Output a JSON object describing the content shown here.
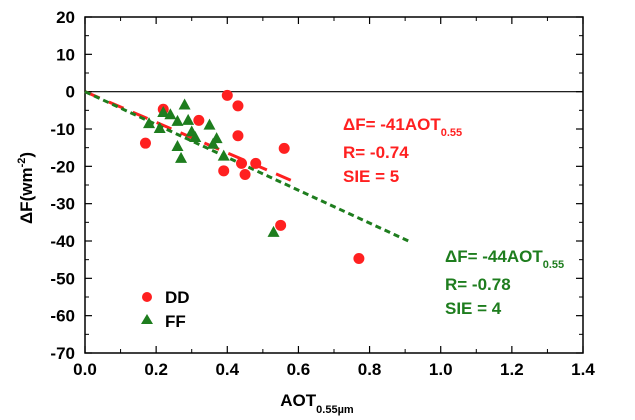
{
  "chart_data": {
    "type": "scatter",
    "xlabel": {
      "main": "AOT",
      "sub": "0.55µm"
    },
    "ylabel": {
      "main": "ΔF(wm",
      "sup": "-2",
      "tail": ")"
    },
    "xlim": [
      0,
      1.4
    ],
    "ylim": [
      -70,
      20
    ],
    "xticks": [
      0.0,
      0.2,
      0.4,
      0.6,
      0.8,
      1.0,
      1.2,
      1.4
    ],
    "xtick_labels": [
      "0.0",
      "0.2",
      "0.4",
      "0.6",
      "0.8",
      "1.0",
      "1.2",
      "1.4"
    ],
    "yticks": [
      20,
      10,
      0,
      -10,
      -20,
      -30,
      -40,
      -50,
      -60,
      -70
    ],
    "ytick_labels": [
      "20",
      "10",
      "0",
      "-10",
      "-20",
      "-30",
      "-40",
      "-50",
      "-60",
      "-70"
    ],
    "grid": false,
    "zero_line": true,
    "legend": {
      "placement": "bottom-left",
      "items": [
        {
          "label": "DD",
          "marker": "circle",
          "color": "#ff2020"
        },
        {
          "label": "FF",
          "marker": "triangle",
          "color": "#1e7d1e"
        }
      ]
    },
    "series": [
      {
        "name": "DD",
        "marker": "circle",
        "color": "#ff2020",
        "points": [
          {
            "x": 0.17,
            "y": -13.8
          },
          {
            "x": 0.22,
            "y": -4.7
          },
          {
            "x": 0.32,
            "y": -7.7
          },
          {
            "x": 0.39,
            "y": -21.2
          },
          {
            "x": 0.4,
            "y": -1.0
          },
          {
            "x": 0.43,
            "y": -3.8
          },
          {
            "x": 0.43,
            "y": -11.8
          },
          {
            "x": 0.44,
            "y": -19.2
          },
          {
            "x": 0.45,
            "y": -22.2
          },
          {
            "x": 0.48,
            "y": -19.2
          },
          {
            "x": 0.55,
            "y": -35.8
          },
          {
            "x": 0.56,
            "y": -15.2
          },
          {
            "x": 0.77,
            "y": -44.7
          }
        ]
      },
      {
        "name": "FF",
        "marker": "triangle",
        "color": "#1e7d1e",
        "points": [
          {
            "x": 0.18,
            "y": -8.6
          },
          {
            "x": 0.21,
            "y": -9.9
          },
          {
            "x": 0.22,
            "y": -5.6
          },
          {
            "x": 0.24,
            "y": -6.2
          },
          {
            "x": 0.26,
            "y": -8.0
          },
          {
            "x": 0.26,
            "y": -14.7
          },
          {
            "x": 0.27,
            "y": -17.9
          },
          {
            "x": 0.28,
            "y": -3.6
          },
          {
            "x": 0.29,
            "y": -7.7
          },
          {
            "x": 0.3,
            "y": -10.8
          },
          {
            "x": 0.31,
            "y": -12.3
          },
          {
            "x": 0.35,
            "y": -9.0
          },
          {
            "x": 0.36,
            "y": -14.1
          },
          {
            "x": 0.37,
            "y": -12.6
          },
          {
            "x": 0.39,
            "y": -17.3
          },
          {
            "x": 0.53,
            "y": -37.7
          }
        ]
      }
    ],
    "fit_lines": [
      {
        "name": "DD fit",
        "color": "#ff2020",
        "slope": -41,
        "x_range": [
          0.0,
          0.58
        ],
        "dash": "long"
      },
      {
        "name": "FF fit",
        "color": "#1e7d1e",
        "slope": -44,
        "x_range": [
          0.0,
          0.91
        ],
        "dash": "short"
      }
    ],
    "annotations": [
      {
        "color": "#ff2020",
        "position": "upper-right-of-fit",
        "equation": {
          "main": "ΔF= -41AOT",
          "sub": "0.55"
        },
        "r_text": "R= -0.74",
        "sie_text": "SIE = 5"
      },
      {
        "color": "#1e7d1e",
        "position": "lower-right-of-fit",
        "equation": {
          "main": "ΔF= -44AOT",
          "sub": "0.55"
        },
        "r_text": "R= -0.78",
        "sie_text": "SIE = 4"
      }
    ]
  }
}
